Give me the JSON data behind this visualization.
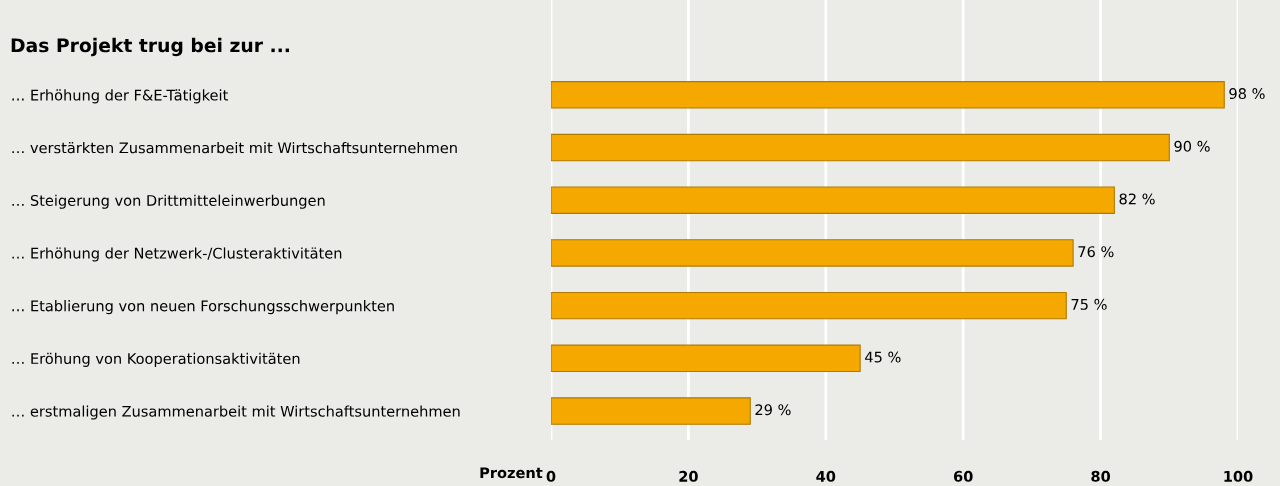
{
  "chart_data": {
    "type": "bar",
    "orientation": "horizontal",
    "title": "Das Projekt trug bei zur ...",
    "xlabel": "Prozent",
    "categories": [
      "… Erhöhung der F&E-Tätigkeit",
      "… verstärkten Zusammenarbeit mit Wirtschaftsunternehmen",
      "… Steigerung von Drittmitteleinwerbungen",
      "… Erhöhung der Netzwerk-/Clusteraktivitäten",
      "… Etablierung von neuen Forschungsschwerpunkten",
      "… Eröhung von Kooperationsaktivitäten",
      "… erstmaligen Zusammenarbeit mit Wirtschaftsunternehmen"
    ],
    "values": [
      98,
      90,
      82,
      76,
      75,
      45,
      29
    ],
    "value_labels": [
      "98 %",
      "90 %",
      "82 %",
      "76 %",
      "75 %",
      "45 %",
      "29 %"
    ],
    "color": "#f5a800",
    "xlim": [
      0,
      100
    ],
    "xticks": [
      0,
      20,
      40,
      60,
      80,
      100
    ],
    "grid": "x",
    "legend": false
  }
}
